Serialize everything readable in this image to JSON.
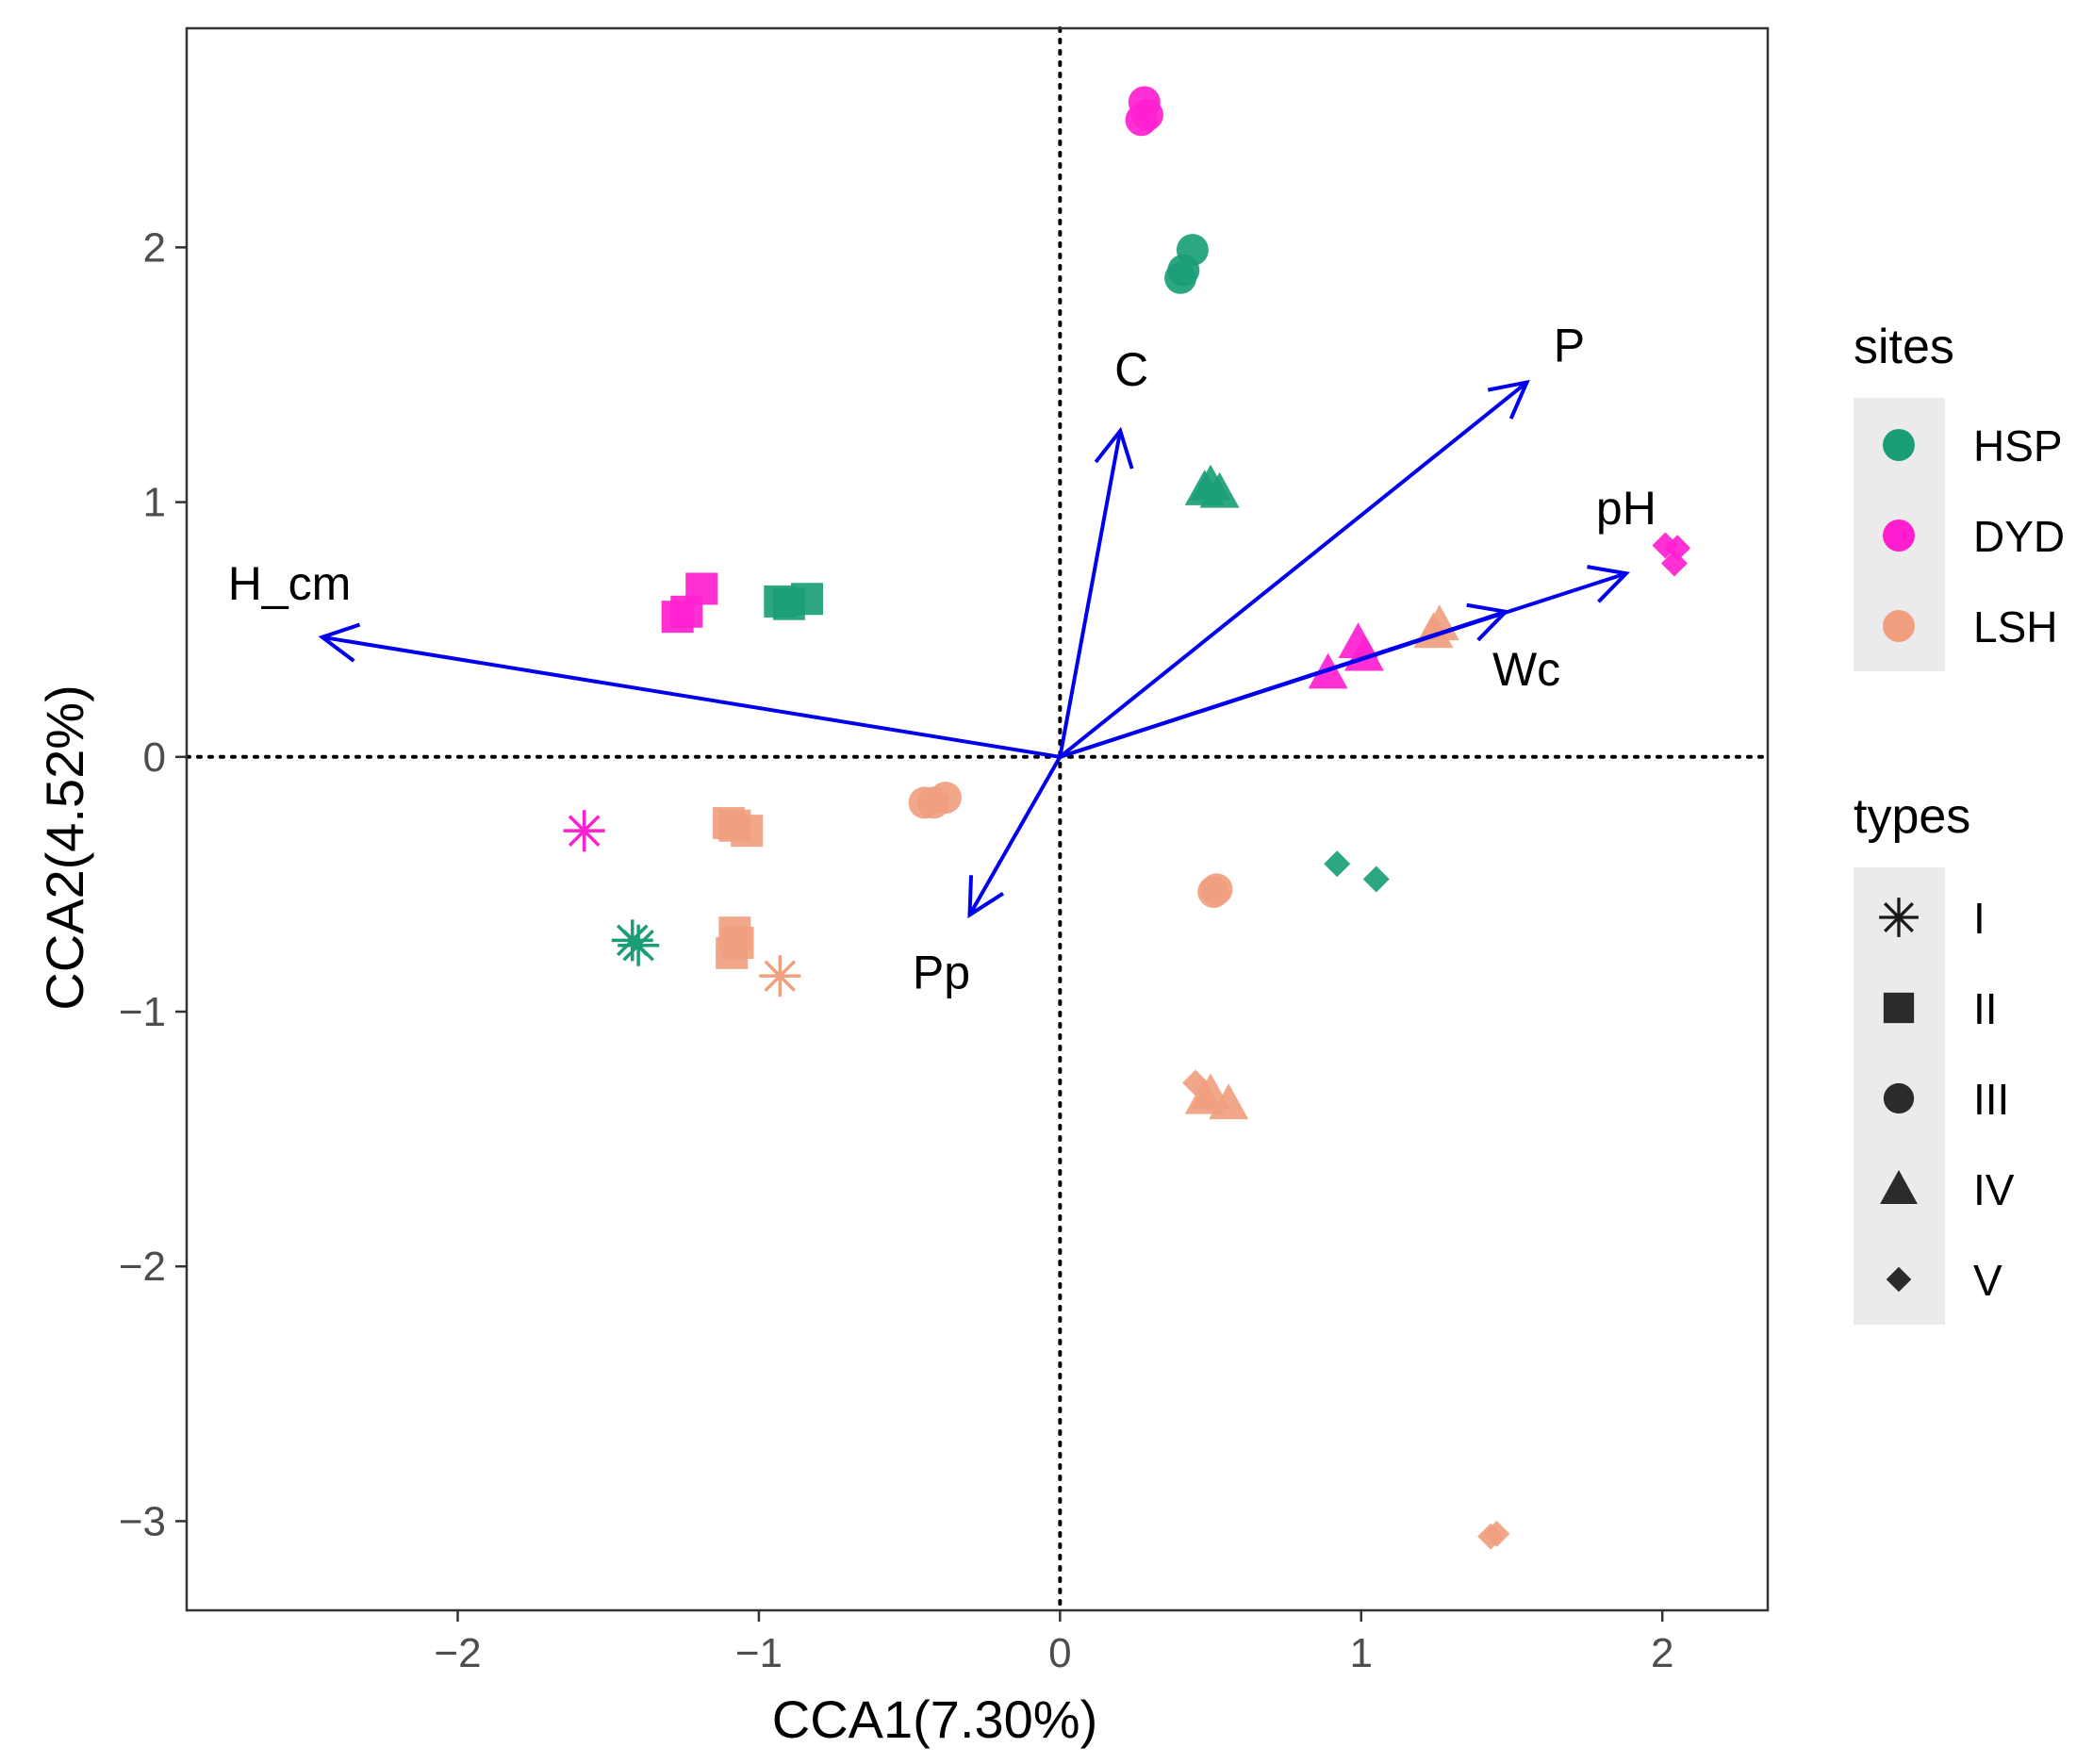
{
  "chart_data": {
    "type": "scatter",
    "title": "",
    "xlabel": "CCA1(7.30%)",
    "ylabel": "CCA2(4.52%)",
    "xlim": [
      -2.9,
      2.35
    ],
    "ylim": [
      -3.35,
      2.86
    ],
    "xticks": [
      -2,
      -1,
      0,
      1,
      2
    ],
    "yticks": [
      -3,
      -2,
      -1,
      0,
      1,
      2
    ],
    "xtick_labels": [
      "−2",
      "−1",
      "0",
      "1",
      "2"
    ],
    "ytick_labels": [
      "−3",
      "−2",
      "−1",
      "0",
      "1",
      "2"
    ],
    "reference_lines": {
      "x": 0,
      "y": 0,
      "style": "dotted"
    },
    "site_colors": {
      "HSP": "#1b9e77",
      "DYD": "#ff1fd0",
      "LSH": "#f0a07f"
    },
    "vector_color": "#0000ee",
    "vectors": [
      {
        "name": "H_cm",
        "x": -2.45,
        "y": 0.47
      },
      {
        "name": "C",
        "x": 0.2,
        "y": 1.28
      },
      {
        "name": "P",
        "x": 1.55,
        "y": 1.47
      },
      {
        "name": "pH",
        "x": 1.88,
        "y": 0.72
      },
      {
        "name": "Wc",
        "x": 1.48,
        "y": 0.57
      },
      {
        "name": "Pp",
        "x": -0.3,
        "y": -0.62
      }
    ],
    "points": [
      {
        "site": "DYD",
        "type": "III",
        "x": 0.28,
        "y": 2.57
      },
      {
        "site": "DYD",
        "type": "III",
        "x": 0.29,
        "y": 2.52
      },
      {
        "site": "DYD",
        "type": "III",
        "x": 0.27,
        "y": 2.5
      },
      {
        "site": "HSP",
        "type": "III",
        "x": 0.44,
        "y": 1.99
      },
      {
        "site": "HSP",
        "type": "III",
        "x": 0.4,
        "y": 1.88
      },
      {
        "site": "HSP",
        "type": "III",
        "x": 0.41,
        "y": 1.91
      },
      {
        "site": "HSP",
        "type": "IV",
        "x": 0.5,
        "y": 1.07
      },
      {
        "site": "HSP",
        "type": "IV",
        "x": 0.53,
        "y": 1.04
      },
      {
        "site": "HSP",
        "type": "IV",
        "x": 0.48,
        "y": 1.05
      },
      {
        "site": "DYD",
        "type": "II",
        "x": -1.19,
        "y": 0.66
      },
      {
        "site": "DYD",
        "type": "II",
        "x": -1.27,
        "y": 0.55
      },
      {
        "site": "DYD",
        "type": "II",
        "x": -1.24,
        "y": 0.57
      },
      {
        "site": "HSP",
        "type": "II",
        "x": -0.93,
        "y": 0.61
      },
      {
        "site": "HSP",
        "type": "II",
        "x": -0.84,
        "y": 0.62
      },
      {
        "site": "HSP",
        "type": "II",
        "x": -0.9,
        "y": 0.6
      },
      {
        "site": "DYD",
        "type": "V",
        "x": 2.01,
        "y": 0.83
      },
      {
        "site": "DYD",
        "type": "V",
        "x": 2.05,
        "y": 0.82
      },
      {
        "site": "DYD",
        "type": "V",
        "x": 2.04,
        "y": 0.76
      },
      {
        "site": "DYD",
        "type": "IV",
        "x": 0.99,
        "y": 0.45
      },
      {
        "site": "DYD",
        "type": "IV",
        "x": 1.01,
        "y": 0.4
      },
      {
        "site": "DYD",
        "type": "IV",
        "x": 0.89,
        "y": 0.33
      },
      {
        "site": "LSH",
        "type": "IV",
        "x": 1.26,
        "y": 0.52
      },
      {
        "site": "LSH",
        "type": "IV",
        "x": 1.24,
        "y": 0.49
      },
      {
        "site": "DYD",
        "type": "I",
        "x": -1.58,
        "y": -0.29
      },
      {
        "site": "LSH",
        "type": "II",
        "x": -1.08,
        "y": -0.27
      },
      {
        "site": "LSH",
        "type": "II",
        "x": -1.04,
        "y": -0.29
      },
      {
        "site": "LSH",
        "type": "II",
        "x": -1.1,
        "y": -0.26
      },
      {
        "site": "LSH",
        "type": "III",
        "x": -0.45,
        "y": -0.18
      },
      {
        "site": "LSH",
        "type": "III",
        "x": -0.38,
        "y": -0.16
      },
      {
        "site": "LSH",
        "type": "III",
        "x": -0.42,
        "y": -0.18
      },
      {
        "site": "LSH",
        "type": "II",
        "x": -1.08,
        "y": -0.69
      },
      {
        "site": "LSH",
        "type": "II",
        "x": -1.09,
        "y": -0.77
      },
      {
        "site": "LSH",
        "type": "II",
        "x": -1.07,
        "y": -0.73
      },
      {
        "site": "HSP",
        "type": "I",
        "x": -1.42,
        "y": -0.72
      },
      {
        "site": "HSP",
        "type": "I",
        "x": -1.4,
        "y": -0.74
      },
      {
        "site": "LSH",
        "type": "I",
        "x": -0.93,
        "y": -0.86
      },
      {
        "site": "LSH",
        "type": "III",
        "x": 0.52,
        "y": -0.52
      },
      {
        "site": "LSH",
        "type": "III",
        "x": 0.51,
        "y": -0.53
      },
      {
        "site": "HSP",
        "type": "V",
        "x": 0.92,
        "y": -0.42
      },
      {
        "site": "HSP",
        "type": "V",
        "x": 1.05,
        "y": -0.48
      },
      {
        "site": "LSH",
        "type": "V",
        "x": 0.45,
        "y": -1.28
      },
      {
        "site": "LSH",
        "type": "IV",
        "x": 0.5,
        "y": -1.32
      },
      {
        "site": "LSH",
        "type": "IV",
        "x": 0.56,
        "y": -1.36
      },
      {
        "site": "LSH",
        "type": "IV",
        "x": 0.48,
        "y": -1.34
      },
      {
        "site": "LSH",
        "type": "V",
        "x": 1.45,
        "y": -3.05
      },
      {
        "site": "LSH",
        "type": "V",
        "x": 1.43,
        "y": -3.06
      }
    ],
    "legend_sites": {
      "title": "sites",
      "items": [
        {
          "label": "HSP",
          "color": "#1b9e77"
        },
        {
          "label": "DYD",
          "color": "#ff1fd0"
        },
        {
          "label": "LSH",
          "color": "#f0a07f"
        }
      ]
    },
    "legend_types": {
      "title": "types",
      "items": [
        {
          "label": "I",
          "shape": "asterisk"
        },
        {
          "label": "II",
          "shape": "square"
        },
        {
          "label": "III",
          "shape": "circle"
        },
        {
          "label": "IV",
          "shape": "triangle"
        },
        {
          "label": "V",
          "shape": "diamond"
        }
      ]
    },
    "legend_position": "right"
  }
}
